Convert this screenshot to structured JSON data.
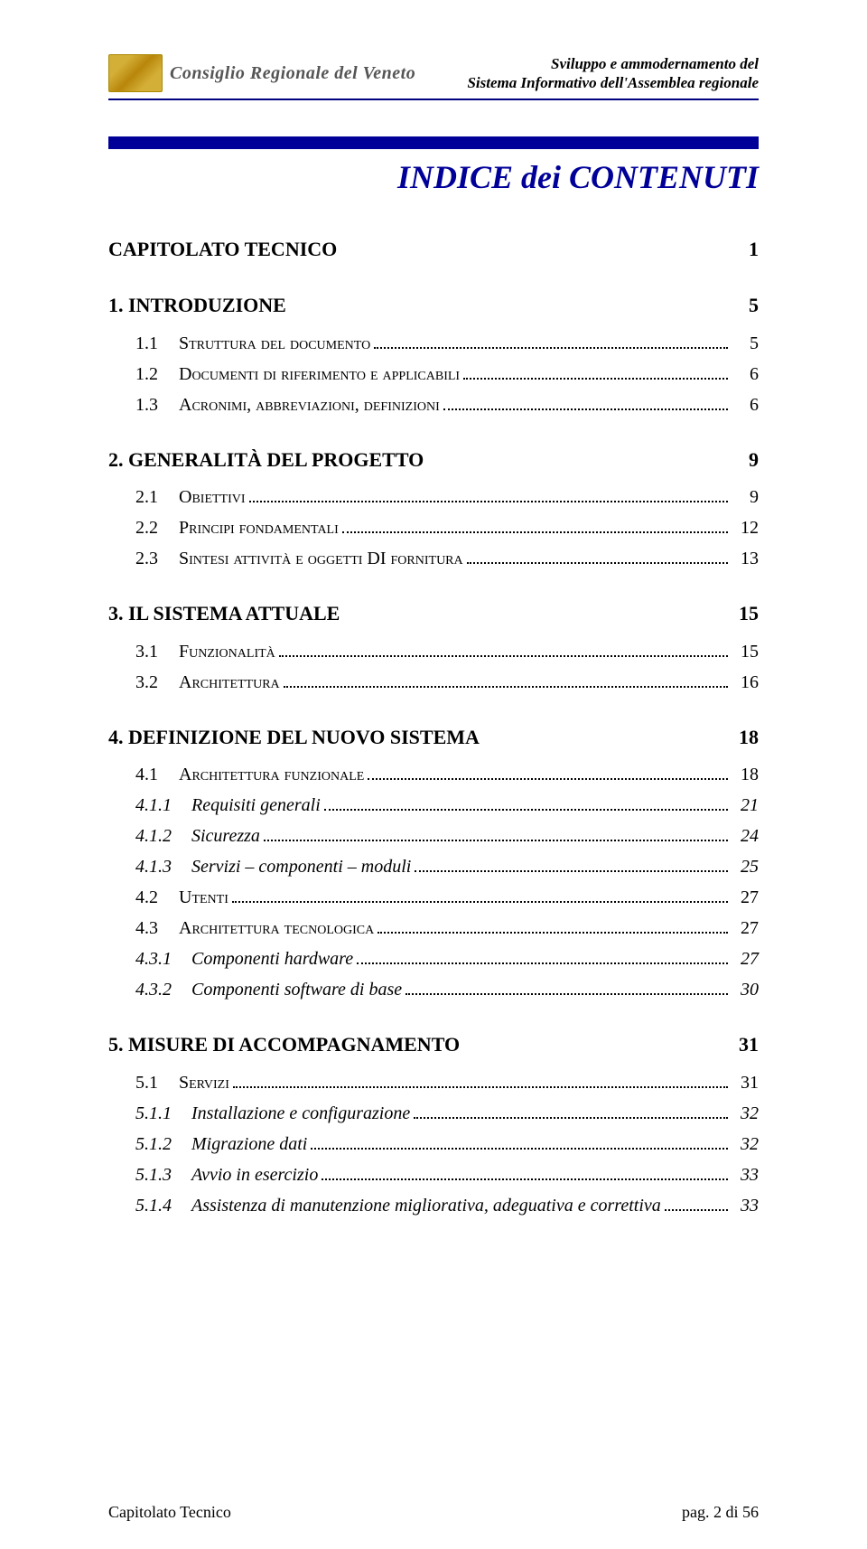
{
  "header": {
    "org_name": "Consiglio Regionale del Veneto",
    "subtitle_line1": "Sviluppo e ammodernamento del",
    "subtitle_line2": "Sistema Informativo dell'Assemblea regionale"
  },
  "main_title": "INDICE dei CONTENUTI",
  "colors": {
    "accent": "#000099",
    "rule": "#000080",
    "text": "#000000",
    "org_text": "#555555"
  },
  "typography": {
    "body_font": "Garamond, 'Times New Roman', Georgia, serif",
    "title_fontsize_pt": 28,
    "lvl0_fontsize_pt": 17,
    "lvl1_fontsize_pt": 17,
    "lvl2_fontsize_pt": 15,
    "lvl3_fontsize_pt": 15
  },
  "toc": [
    {
      "level": 0,
      "num": "",
      "label": "CAPITOLATO TECNICO",
      "page": "1"
    },
    {
      "level": 1,
      "num": "1.",
      "label": "INTRODUZIONE",
      "page": "5"
    },
    {
      "level": 2,
      "num": "1.1",
      "label": "Struttura del documento",
      "page": "5"
    },
    {
      "level": 2,
      "num": "1.2",
      "label": "Documenti di riferimento e applicabili",
      "page": "6"
    },
    {
      "level": 2,
      "num": "1.3",
      "label": "Acronimi, abbreviazioni, definizioni",
      "page": "6"
    },
    {
      "level": 1,
      "num": "2.",
      "label": "GENERALITÀ DEL PROGETTO",
      "page": "9"
    },
    {
      "level": 2,
      "num": "2.1",
      "label": "Obiettivi",
      "page": "9"
    },
    {
      "level": 2,
      "num": "2.2",
      "label": "Principi fondamentali",
      "page": "12"
    },
    {
      "level": 2,
      "num": "2.3",
      "label": "Sintesi attività e oggetti DI fornitura",
      "page": "13"
    },
    {
      "level": 1,
      "num": "3.",
      "label": "IL SISTEMA ATTUALE",
      "page": "15"
    },
    {
      "level": 2,
      "num": "3.1",
      "label": "Funzionalità",
      "page": "15"
    },
    {
      "level": 2,
      "num": "3.2",
      "label": "Architettura",
      "page": "16"
    },
    {
      "level": 1,
      "num": "4.",
      "label": "DEFINIZIONE DEL NUOVO SISTEMA",
      "page": "18"
    },
    {
      "level": 2,
      "num": "4.1",
      "label": "Architettura funzionale",
      "page": "18"
    },
    {
      "level": 3,
      "num": "4.1.1",
      "label": "Requisiti generali",
      "page": "21"
    },
    {
      "level": 3,
      "num": "4.1.2",
      "label": "Sicurezza",
      "page": "24"
    },
    {
      "level": 3,
      "num": "4.1.3",
      "label": "Servizi – componenti – moduli",
      "page": "25"
    },
    {
      "level": 2,
      "num": "4.2",
      "label": "Utenti",
      "page": "27"
    },
    {
      "level": 2,
      "num": "4.3",
      "label": "Architettura tecnologica",
      "page": "27"
    },
    {
      "level": 3,
      "num": "4.3.1",
      "label": "Componenti hardware",
      "page": "27"
    },
    {
      "level": 3,
      "num": "4.3.2",
      "label": "Componenti software di base",
      "page": "30"
    },
    {
      "level": 1,
      "num": "5.",
      "label": "MISURE DI ACCOMPAGNAMENTO",
      "page": "31"
    },
    {
      "level": 2,
      "num": "5.1",
      "label": "Servizi",
      "page": "31"
    },
    {
      "level": 3,
      "num": "5.1.1",
      "label": "Installazione e configurazione",
      "page": "32"
    },
    {
      "level": 3,
      "num": "5.1.2",
      "label": "Migrazione dati",
      "page": "32"
    },
    {
      "level": 3,
      "num": "5.1.3",
      "label": "Avvio in esercizio",
      "page": "33"
    },
    {
      "level": 3,
      "num": "5.1.4",
      "label": "Assistenza di manutenzione migliorativa, adeguativa e correttiva",
      "page": "33"
    }
  ],
  "footer": {
    "left": "Capitolato Tecnico",
    "right": "pag.  2 di 56"
  }
}
